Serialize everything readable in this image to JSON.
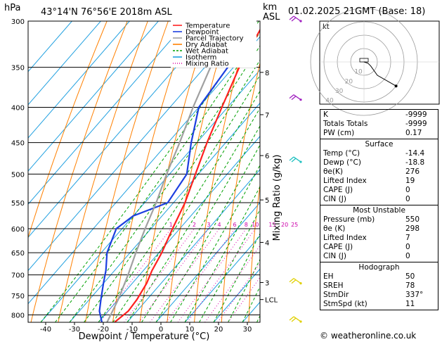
{
  "header": {
    "pressure_unit": "hPa",
    "location": "43°14'N  76°56'E  2018m  ASL",
    "height_unit_line1": "km",
    "height_unit_line2": "ASL",
    "datetime": "01.02.2025  21GMT  (Base: 18)"
  },
  "chart_data": {
    "type": "skew-t log-p",
    "xlabel": "Dewpoint / Temperature (°C)",
    "ylabel_right": "Mixing Ratio (g/kg)",
    "xlim": [
      -45,
      35
    ],
    "pressure_range": [
      820,
      300
    ],
    "x_ticks": [
      -40,
      -30,
      -20,
      -10,
      0,
      10,
      20,
      30
    ],
    "pressure_ticks": [
      300,
      350,
      400,
      450,
      500,
      550,
      600,
      650,
      700,
      750,
      800
    ],
    "height_ticks": [
      {
        "label": "8",
        "p": 356
      },
      {
        "label": "7",
        "p": 410
      },
      {
        "label": "6",
        "p": 470
      },
      {
        "label": "5",
        "p": 545
      },
      {
        "label": "4",
        "p": 628
      },
      {
        "label": "3",
        "p": 718
      },
      {
        "label": "LCL",
        "p": 760
      }
    ],
    "mixing_ratio_labels": [
      "1",
      "2",
      "3",
      "4",
      "6",
      "8",
      "10",
      "15",
      "20",
      "25"
    ],
    "legend": [
      {
        "label": "Temperature",
        "color": "#ff2020"
      },
      {
        "label": "Dewpoint",
        "color": "#1c3fe0"
      },
      {
        "label": "Parcel Trajectory",
        "color": "#a0a0a0"
      },
      {
        "label": "Dry Adiabat",
        "color": "#ff8000"
      },
      {
        "label": "Wet Adiabat",
        "color": "#00a000"
      },
      {
        "label": "Isotherm",
        "color": "#20a0e0"
      },
      {
        "label": "Mixing Ratio",
        "color": "#dd00aa"
      }
    ],
    "series": [
      {
        "name": "Temperature",
        "points": [
          [
            820,
            -14.4
          ],
          [
            790,
            -13
          ],
          [
            760,
            -13.5
          ],
          [
            720,
            -15
          ],
          [
            690,
            -17
          ],
          [
            650,
            -19
          ],
          [
            600,
            -22.5
          ],
          [
            550,
            -26
          ],
          [
            500,
            -31
          ],
          [
            450,
            -36.5
          ],
          [
            400,
            -42
          ],
          [
            350,
            -48
          ],
          [
            300,
            -53
          ]
        ]
      },
      {
        "name": "Dewpoint",
        "points": [
          [
            820,
            -18.8
          ],
          [
            790,
            -23
          ],
          [
            760,
            -26
          ],
          [
            720,
            -30
          ],
          [
            690,
            -33
          ],
          [
            650,
            -38
          ],
          [
            600,
            -42
          ],
          [
            575,
            -40
          ],
          [
            550,
            -32
          ],
          [
            500,
            -34
          ],
          [
            450,
            -42
          ],
          [
            400,
            -50
          ],
          [
            350,
            -52
          ],
          [
            300,
            -60
          ]
        ]
      },
      {
        "name": "Parcel Trajectory",
        "points": [
          [
            820,
            -17
          ],
          [
            760,
            -20
          ],
          [
            700,
            -24
          ],
          [
            650,
            -28
          ],
          [
            600,
            -32
          ],
          [
            550,
            -36
          ],
          [
            500,
            -41
          ],
          [
            450,
            -46
          ],
          [
            400,
            -52
          ],
          [
            350,
            -58
          ],
          [
            300,
            -64
          ]
        ]
      }
    ],
    "wind_barbs": [
      {
        "p": 300,
        "color": "#a020c0"
      },
      {
        "p": 390,
        "color": "#a020c0"
      },
      {
        "p": 480,
        "color": "#20c0c0"
      },
      {
        "p": 720,
        "color": "#e0d000"
      },
      {
        "p": 818,
        "color": "#e0d000"
      }
    ]
  },
  "hodograph": {
    "label": "kt",
    "ring_labels": [
      "10",
      "20",
      "30",
      "40"
    ],
    "trace_kt": [
      [
        0,
        0
      ],
      [
        3,
        -1
      ],
      [
        5,
        -3
      ],
      [
        10,
        -10
      ],
      [
        24,
        -18
      ]
    ]
  },
  "indices": {
    "rows": [
      {
        "label": "K",
        "value": "-9999"
      },
      {
        "label": "Totals Totals",
        "value": "-9999"
      },
      {
        "label": "PW (cm)",
        "value": "0.17"
      }
    ]
  },
  "surface": {
    "title": "Surface",
    "rows": [
      {
        "label": "Temp (°C)",
        "value": "-14.4"
      },
      {
        "label": "Dewp (°C)",
        "value": "-18.8"
      },
      {
        "label": "θe(K)",
        "value": "276"
      },
      {
        "label": "Lifted Index",
        "value": "19"
      },
      {
        "label": "CAPE (J)",
        "value": "0"
      },
      {
        "label": "CIN (J)",
        "value": "0"
      }
    ]
  },
  "most_unstable": {
    "title": "Most Unstable",
    "rows": [
      {
        "label": "Pressure (mb)",
        "value": "550"
      },
      {
        "label": "θe (K)",
        "value": "298"
      },
      {
        "label": "Lifted Index",
        "value": "7"
      },
      {
        "label": "CAPE (J)",
        "value": "0"
      },
      {
        "label": "CIN (J)",
        "value": "0"
      }
    ]
  },
  "hodo_params": {
    "title": "Hodograph",
    "rows": [
      {
        "label": "EH",
        "value": "50"
      },
      {
        "label": "SREH",
        "value": "78"
      },
      {
        "label": "StmDir",
        "value": "337°"
      },
      {
        "label": "StmSpd (kt)",
        "value": "11"
      }
    ]
  },
  "footer": "© weatheronline.co.uk",
  "colors": {
    "temperature": "#ff2020",
    "dewpoint": "#1c3fe0",
    "parcel": "#a0a0a0",
    "dry_adiabat": "#ff8000",
    "wet_adiabat": "#00a000",
    "isotherm": "#20a0e0",
    "mixing_ratio": "#dd00aa"
  }
}
